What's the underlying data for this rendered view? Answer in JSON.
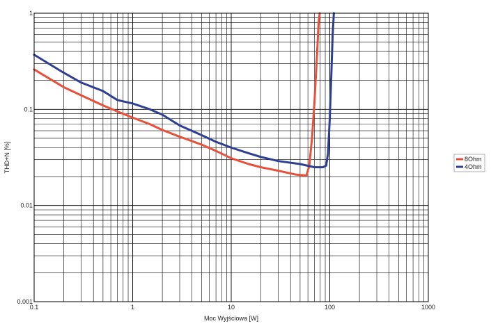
{
  "chart_data": {
    "type": "line",
    "title": "",
    "xlabel": "Moc Wyjściowa [W]",
    "ylabel": "THD+N [%]",
    "xscale": "log",
    "yscale": "log",
    "xlim": [
      0.1,
      1000
    ],
    "ylim": [
      0.001,
      1
    ],
    "grid": true,
    "legend_position": "right",
    "x_ticks": [
      {
        "value": 0.1,
        "label": "0.1"
      },
      {
        "value": 1,
        "label": "1"
      },
      {
        "value": 10,
        "label": "10"
      },
      {
        "value": 100,
        "label": "100"
      },
      {
        "value": 1000,
        "label": "1000"
      }
    ],
    "y_ticks": [
      {
        "value": 1,
        "label": "1"
      },
      {
        "value": 0.1,
        "label": "0.1"
      },
      {
        "value": 0.01,
        "label": "0.01"
      },
      {
        "value": 0.001,
        "label": "0.001"
      }
    ],
    "series": [
      {
        "name": "8Ohm",
        "color": "#e8503a",
        "points": [
          [
            0.1,
            0.26
          ],
          [
            0.2,
            0.17
          ],
          [
            0.3,
            0.14
          ],
          [
            0.5,
            0.11
          ],
          [
            0.7,
            0.095
          ],
          [
            1,
            0.082
          ],
          [
            1.5,
            0.07
          ],
          [
            2,
            0.061
          ],
          [
            3,
            0.052
          ],
          [
            5,
            0.043
          ],
          [
            7,
            0.037
          ],
          [
            10,
            0.031
          ],
          [
            15,
            0.027
          ],
          [
            20,
            0.025
          ],
          [
            30,
            0.023
          ],
          [
            45,
            0.021
          ],
          [
            58,
            0.0205
          ],
          [
            62,
            0.026
          ],
          [
            66,
            0.05
          ],
          [
            70,
            0.12
          ],
          [
            74,
            0.35
          ],
          [
            77,
            0.8
          ],
          [
            79,
            1.0
          ]
        ]
      },
      {
        "name": "4Ohm",
        "color": "#2e3f93",
        "points": [
          [
            0.1,
            0.37
          ],
          [
            0.2,
            0.24
          ],
          [
            0.3,
            0.19
          ],
          [
            0.5,
            0.155
          ],
          [
            0.7,
            0.125
          ],
          [
            1,
            0.115
          ],
          [
            1.5,
            0.1
          ],
          [
            2,
            0.088
          ],
          [
            3,
            0.068
          ],
          [
            5,
            0.054
          ],
          [
            7,
            0.046
          ],
          [
            10,
            0.04
          ],
          [
            15,
            0.035
          ],
          [
            20,
            0.032
          ],
          [
            30,
            0.029
          ],
          [
            50,
            0.027
          ],
          [
            70,
            0.025
          ],
          [
            85,
            0.025
          ],
          [
            92,
            0.026
          ],
          [
            96,
            0.035
          ],
          [
            100,
            0.08
          ],
          [
            104,
            0.25
          ],
          [
            107,
            0.6
          ],
          [
            110,
            1.0
          ]
        ]
      }
    ]
  }
}
